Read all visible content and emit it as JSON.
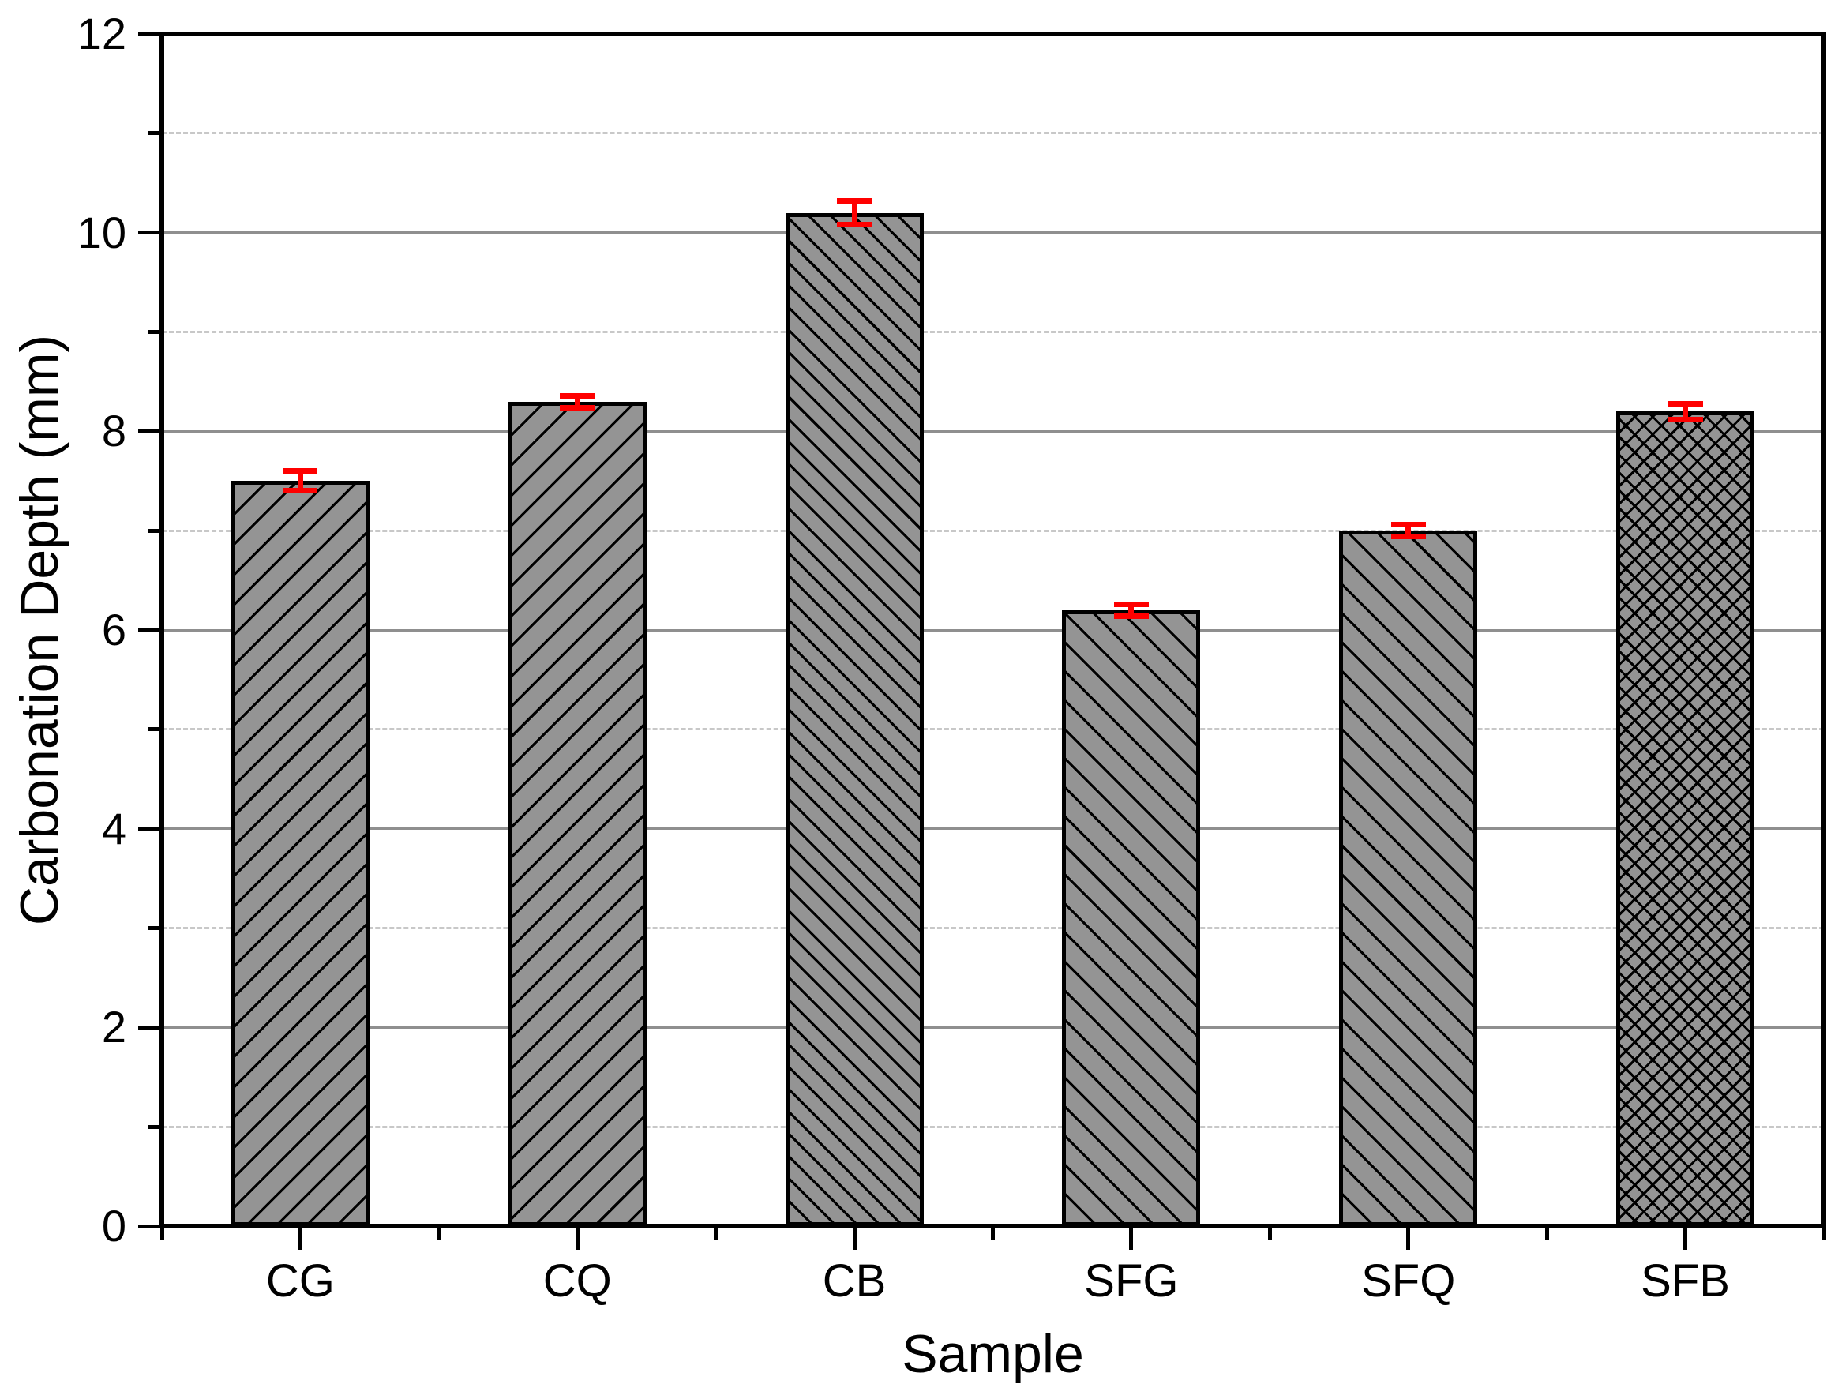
{
  "chart_data": {
    "type": "bar",
    "title": "",
    "xlabel": "Sample",
    "ylabel": "Carbonation Depth (mm)",
    "categories": [
      "CG",
      "CQ",
      "CB",
      "SFG",
      "SFQ",
      "SFB"
    ],
    "values": [
      7.5,
      8.3,
      10.2,
      6.2,
      7.0,
      8.2
    ],
    "errors": [
      0.1,
      0.06,
      0.12,
      0.06,
      0.06,
      0.08
    ],
    "hatches": [
      "/",
      "/",
      "\\",
      "\\",
      "\\",
      "x"
    ],
    "hatch_spacing_px": [
      27,
      27,
      20,
      26,
      26,
      16
    ],
    "ylim": [
      0,
      12
    ],
    "y_major_ticks": [
      0,
      2,
      4,
      6,
      8,
      10,
      12
    ],
    "y_minor_ticks": [
      1,
      3,
      5,
      7,
      9,
      11
    ],
    "grid": {
      "major_style": "solid",
      "minor_style": "dashed",
      "vertical": "off"
    },
    "legend": "none",
    "bar_width_fraction": 0.5,
    "colors": {
      "bar_fill": "#949494",
      "hatch_line": "#000000",
      "bar_border": "#000000",
      "error_bar": "#ff0000",
      "grid_major": "#8f8f8f",
      "grid_minor": "#c8c8c8",
      "axis": "#000000",
      "background": "#ffffff"
    }
  }
}
